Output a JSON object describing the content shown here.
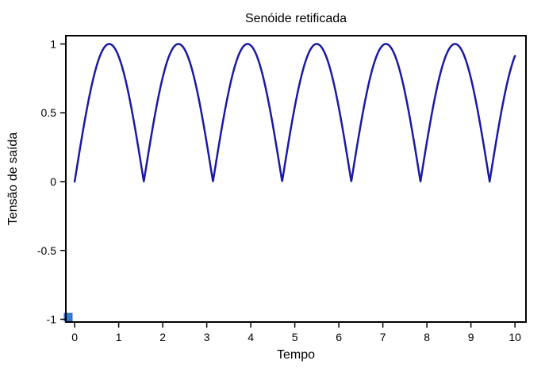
{
  "chart_data": {
    "type": "line",
    "title": "Senóide retificada",
    "xlabel": "Tempo",
    "ylabel": "Tensão de saída",
    "xlim": [
      -0.2,
      10.25
    ],
    "ylim": [
      -1.02,
      1.06
    ],
    "xticks": [
      0,
      1,
      2,
      3,
      4,
      5,
      6,
      7,
      8,
      9,
      10
    ],
    "xtick_labels": [
      "0",
      "1",
      "2",
      "3",
      "4",
      "5",
      "6",
      "7",
      "8",
      "9",
      "10"
    ],
    "yticks": [
      1,
      0.5,
      0,
      -0.5,
      -1
    ],
    "ytick_labels": [
      "1",
      "0.5",
      "0",
      "-0.5",
      "-1"
    ],
    "grid": false,
    "legend": "none",
    "series": [
      {
        "function": "|sin(2t)|",
        "x_start": 0,
        "x_end": 10,
        "color": "#1a1aa6"
      }
    ],
    "peaks_x": [
      0.785,
      2.356,
      3.927,
      5.498,
      7.069,
      8.639
    ],
    "zeros_x": [
      0,
      1.571,
      3.142,
      4.712,
      6.283,
      7.854,
      9.425
    ],
    "end_value": 0.913,
    "marker": {
      "x": -0.2,
      "y": -1.02,
      "color": "#2f7fd8"
    }
  }
}
